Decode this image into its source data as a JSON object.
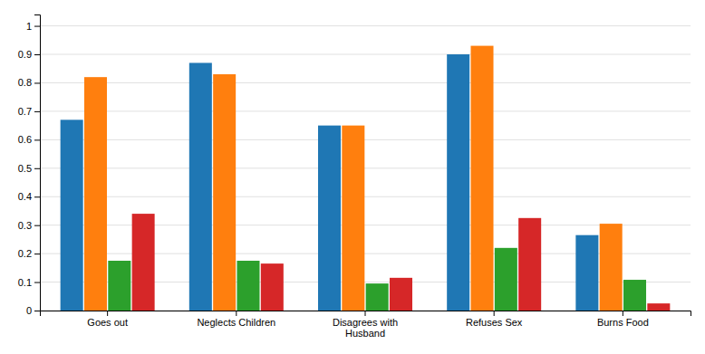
{
  "chart_data": {
    "type": "bar",
    "categories": [
      "Goes out",
      "Neglects Children",
      "Disagrees with\nHusband",
      "Refuses Sex",
      "Burns Food"
    ],
    "series": [
      {
        "values": [
          0.67,
          0.87,
          0.65,
          0.9,
          0.265
        ]
      },
      {
        "values": [
          0.82,
          0.83,
          0.65,
          0.93,
          0.305
        ]
      },
      {
        "values": [
          0.175,
          0.175,
          0.095,
          0.22,
          0.108
        ]
      },
      {
        "values": [
          0.34,
          0.165,
          0.115,
          0.325,
          0.025
        ]
      }
    ],
    "ylim": [
      0,
      1.04
    ],
    "yticks": [
      0,
      0.1,
      0.2,
      0.3,
      0.4,
      0.5,
      0.6,
      0.7,
      0.8,
      0.9,
      1
    ],
    "grid": true
  }
}
